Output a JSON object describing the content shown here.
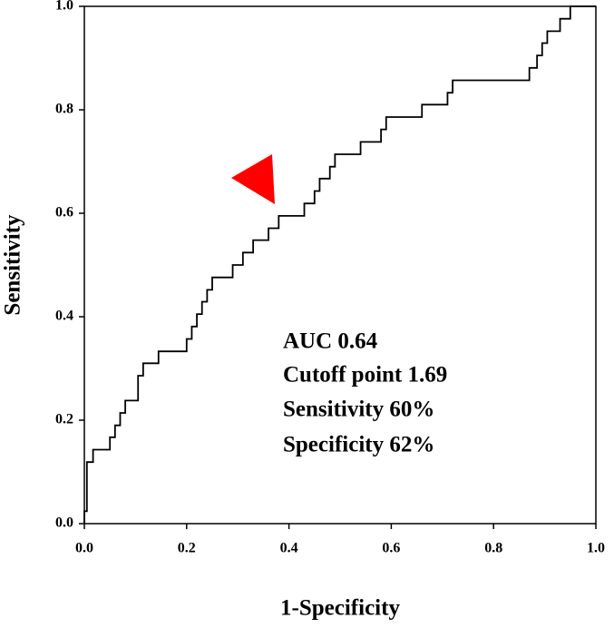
{
  "chart_data": {
    "type": "line",
    "xlabel": "1-Specificity",
    "ylabel": "Sensitivity",
    "annotations": [
      "AUC 0.64",
      "Cutoff point 1.69",
      "Sensitivity 60%",
      "Specificity 62%"
    ],
    "x": [
      0,
      0,
      0.005,
      0.005,
      0.017,
      0.017,
      0.05,
      0.05,
      0.06,
      0.06,
      0.07,
      0.07,
      0.08,
      0.08,
      0.105,
      0.105,
      0.115,
      0.115,
      0.145,
      0.145,
      0.2,
      0.2,
      0.21,
      0.21,
      0.22,
      0.22,
      0.23,
      0.23,
      0.24,
      0.24,
      0.25,
      0.25,
      0.29,
      0.29,
      0.31,
      0.31,
      0.33,
      0.33,
      0.36,
      0.36,
      0.38,
      0.38,
      0.43,
      0.43,
      0.45,
      0.45,
      0.46,
      0.46,
      0.48,
      0.48,
      0.49,
      0.49,
      0.54,
      0.54,
      0.58,
      0.58,
      0.59,
      0.59,
      0.66,
      0.66,
      0.71,
      0.71,
      0.72,
      0.72,
      0.87,
      0.87,
      0.885,
      0.885,
      0.895,
      0.895,
      0.905,
      0.905,
      0.93,
      0.93,
      0.95,
      0.95,
      1.0
    ],
    "values": [
      0,
      0.024,
      0.024,
      0.119,
      0.119,
      0.143,
      0.143,
      0.167,
      0.167,
      0.19,
      0.19,
      0.214,
      0.214,
      0.238,
      0.238,
      0.286,
      0.286,
      0.31,
      0.31,
      0.333,
      0.333,
      0.357,
      0.357,
      0.381,
      0.381,
      0.405,
      0.405,
      0.429,
      0.429,
      0.452,
      0.452,
      0.476,
      0.476,
      0.5,
      0.5,
      0.524,
      0.524,
      0.548,
      0.548,
      0.571,
      0.571,
      0.595,
      0.595,
      0.619,
      0.619,
      0.643,
      0.643,
      0.667,
      0.667,
      0.69,
      0.69,
      0.714,
      0.714,
      0.738,
      0.738,
      0.762,
      0.762,
      0.786,
      0.786,
      0.81,
      0.81,
      0.833,
      0.833,
      0.857,
      0.857,
      0.881,
      0.881,
      0.905,
      0.905,
      0.929,
      0.929,
      0.952,
      0.952,
      0.976,
      0.976,
      1.0,
      1.0
    ],
    "color": "#000000",
    "xlim": [
      0,
      1
    ],
    "ylim": [
      0,
      1
    ],
    "xticks": [
      {
        "value": 0,
        "label": "0.0"
      },
      0.2,
      0.4,
      0.6,
      0.8,
      {
        "value": 1,
        "label": "1.0"
      }
    ],
    "yticks": [
      {
        "value": 0,
        "label": "0.0"
      },
      0.2,
      0.4,
      0.6,
      0.8,
      {
        "value": 1,
        "label": "1.0"
      }
    ],
    "grid": false
  }
}
